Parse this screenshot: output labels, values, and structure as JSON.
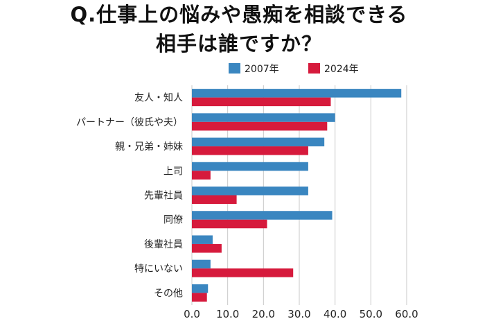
{
  "chart_data": {
    "type": "bar",
    "orientation": "horizontal",
    "title_line1": "Q.仕事上の悩みや愚痴を相談できる",
    "title_line2": "相手は誰ですか？",
    "categories": [
      "友人・知人",
      "パートナー（彼氏や夫）",
      "親・兄弟・姉妹",
      "上司",
      "先輩社員",
      "同僚",
      "後輩社員",
      "特にいない",
      "その他"
    ],
    "series": [
      {
        "name": "2007年",
        "color": "#3a86c0",
        "values": [
          58.5,
          40.0,
          37.0,
          32.5,
          32.5,
          39.2,
          5.8,
          5.2,
          4.5
        ]
      },
      {
        "name": "2024年",
        "color": "#d61a3c",
        "values": [
          38.8,
          37.8,
          32.5,
          5.2,
          12.5,
          21.0,
          8.3,
          28.3,
          4.2
        ]
      }
    ],
    "xlim": [
      0,
      60
    ],
    "xticks": [
      "0.0",
      "10.0",
      "20.0",
      "30.0",
      "40.0",
      "50.0",
      "60.0"
    ],
    "grid": "vertical",
    "legend_position": "top"
  }
}
